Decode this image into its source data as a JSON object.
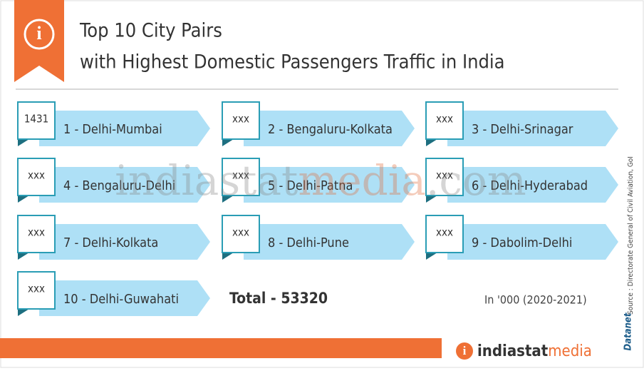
{
  "header": {
    "title_line1": "Top 10 City Pairs",
    "title_line2": "with Highest Domestic Passengers Traffic in India"
  },
  "items": [
    {
      "value": "1431",
      "label": "1 - Delhi-Mumbai"
    },
    {
      "value": "xxx",
      "label": "2 - Bengaluru-Kolkata"
    },
    {
      "value": "xxx",
      "label": "3 - Delhi-Srinagar"
    },
    {
      "value": "xxx",
      "label": "4 - Bengaluru-Delhi"
    },
    {
      "value": "xxx",
      "label": "5 - Delhi-Patna"
    },
    {
      "value": "xxx",
      "label": "6 - Delhi-Hyderabad"
    },
    {
      "value": "xxx",
      "label": "7 - Delhi-Kolkata"
    },
    {
      "value": "xxx",
      "label": "8 - Delhi-Pune"
    },
    {
      "value": "xxx",
      "label": "9 - Dabolim-Delhi"
    },
    {
      "value": "xxx",
      "label": "10 - Delhi-Guwahati"
    }
  ],
  "total": "Total  -  53320",
  "unit_note": "In '000 (2020-2021)",
  "source": "Source : Directorate General of Civil Aviation, GoI",
  "datanet": "Datanet",
  "footer": {
    "brand_part1": "indiastat",
    "brand_part2": "media"
  },
  "watermark": {
    "part1": "indiastat",
    "part2": "media",
    ".com": ".com"
  }
}
